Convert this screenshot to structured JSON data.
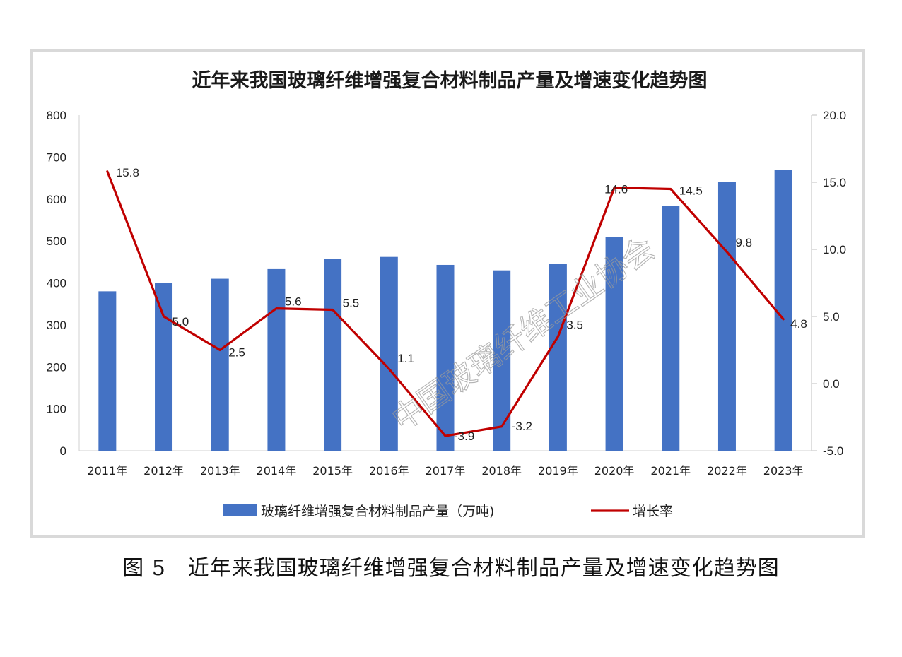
{
  "chart_data": {
    "type": "bar",
    "title": "近年来我国玻璃纤维增强复合材料制品产量及增速变化趋势图",
    "categories": [
      "2011年",
      "2012年",
      "2013年",
      "2014年",
      "2015年",
      "2016年",
      "2017年",
      "2018年",
      "2019年",
      "2020年",
      "2021年",
      "2022年",
      "2023年"
    ],
    "series": [
      {
        "name": "玻璃纤维增强复合材料制品产量（万吨)",
        "type": "bar",
        "axis": "left",
        "color": "#4472c4",
        "values": [
          380,
          400,
          410,
          433,
          458,
          462,
          443,
          430,
          445,
          510,
          583,
          641,
          670
        ]
      },
      {
        "name": "增长率",
        "type": "line",
        "axis": "right",
        "color": "#c00000",
        "values": [
          15.8,
          5.0,
          2.5,
          5.6,
          5.5,
          1.1,
          -3.9,
          -3.2,
          3.5,
          14.6,
          14.5,
          9.8,
          4.8
        ],
        "data_labels": [
          "15.8",
          "5.0",
          "2.5",
          "5.6",
          "5.5",
          "1.1",
          "-3.9",
          "-3.2",
          "3.5",
          "14.6",
          "14.5",
          "9.8",
          "4.8"
        ]
      }
    ],
    "y_left": {
      "ylim": [
        0,
        800
      ],
      "ticks": [
        "0",
        "100",
        "200",
        "300",
        "400",
        "500",
        "600",
        "700",
        "800"
      ]
    },
    "y_right": {
      "ylim": [
        -5,
        20
      ],
      "ticks": [
        "-5.0",
        "0.0",
        "5.0",
        "10.0",
        "15.0",
        "20.0"
      ]
    },
    "grid": false,
    "legend_position": "bottom"
  },
  "watermark": "中国玻璃纤维工业协会",
  "caption": "图 5　近年来我国玻璃纤维增强复合材料制品产量及增速变化趋势图"
}
